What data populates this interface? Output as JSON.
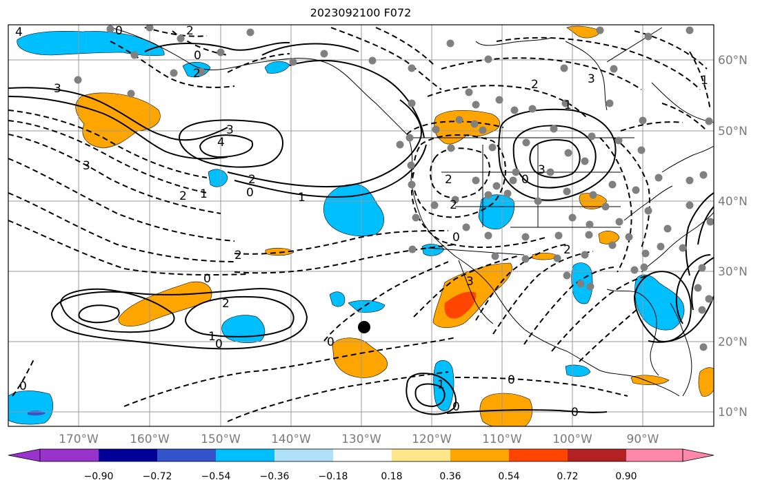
{
  "title": "2023092100 F072",
  "longitude_labels": [
    "170°W",
    "160°W",
    "150°W",
    "140°W",
    "130°W",
    "120°W",
    "110°W",
    "100°W",
    "90°W"
  ],
  "latitude_labels": [
    "60°N",
    "50°N",
    "40°N",
    "30°N",
    "20°N",
    "10°N"
  ],
  "colorbar": {
    "tick_labels": [
      "−0.90",
      "−0.72",
      "−0.54",
      "−0.36",
      "−0.18",
      "0.18",
      "0.36",
      "0.54",
      "0.72",
      "0.90"
    ],
    "colors": [
      "#9933cc",
      "#000099",
      "#3355cc",
      "#00bfff",
      "#aee0f8",
      "#ffffff",
      "#ffe68a",
      "#ffa500",
      "#ff4500",
      "#b22222",
      "#ff88aa"
    ]
  },
  "contour_labels": [
    "4",
    "0",
    "2",
    "3",
    "0",
    "2",
    "3",
    "4",
    "3",
    "2",
    "0",
    "1",
    "1",
    "2",
    "3",
    "3",
    "2",
    "0",
    "2",
    "0",
    "2",
    "1",
    "2",
    "0",
    "2",
    "1",
    "0",
    "0",
    "0",
    "1",
    "0",
    "3",
    "2",
    "0",
    "1",
    "0"
  ],
  "colors": {
    "positive": "#ffa500",
    "strong_positive": "#ff4500",
    "negative": "#00bfff",
    "marker": "#000000",
    "stations": "#808080"
  }
}
